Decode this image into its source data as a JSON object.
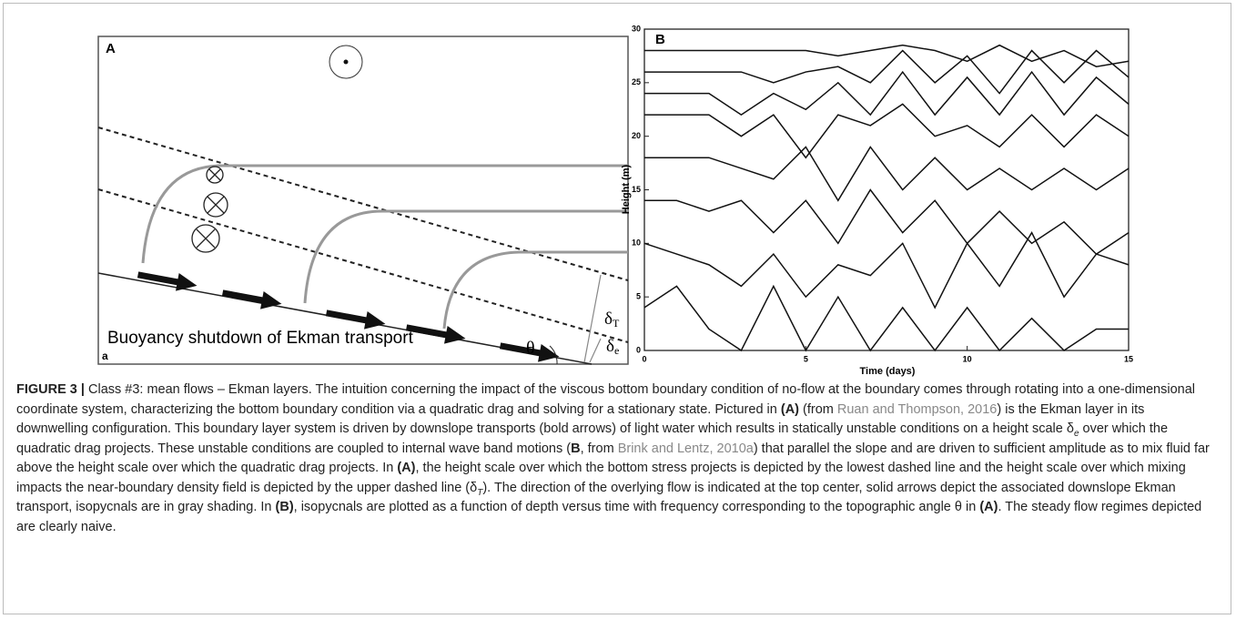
{
  "panel_a": {
    "label": "A",
    "corner": "a",
    "title": "Buoyancy shutdown of Ekman transport",
    "theta": "θ",
    "delta_t": {
      "symbol": "δ",
      "sub": "T"
    },
    "delta_e": {
      "symbol": "δ",
      "sub": "e"
    }
  },
  "chart_data": {
    "type": "line",
    "label": "B",
    "xlabel": "Time (days)",
    "ylabel": "Height (m)",
    "xlim": [
      0,
      15
    ],
    "ylim": [
      0,
      30
    ],
    "xticks": [
      0,
      5,
      10,
      15
    ],
    "yticks": [
      0,
      5,
      10,
      15,
      20,
      25,
      30
    ],
    "grid": false,
    "x": [
      0,
      1,
      2,
      3,
      4,
      5,
      6,
      7,
      8,
      9,
      10,
      11,
      12,
      13,
      14,
      15
    ],
    "series": [
      {
        "color": "#111",
        "values": [
          28,
          28,
          28,
          28,
          28,
          28,
          27.5,
          28,
          28.5,
          28,
          27,
          28.5,
          27,
          28,
          26.5,
          27
        ]
      },
      {
        "color": "#111",
        "values": [
          26,
          26,
          26,
          26,
          25,
          26,
          26.5,
          25,
          28,
          25,
          27.5,
          24,
          28,
          25,
          28,
          25.5
        ]
      },
      {
        "color": "#111",
        "values": [
          24,
          24,
          24,
          22,
          24,
          22.5,
          25,
          22,
          26,
          22,
          25.5,
          22,
          26,
          22,
          25.5,
          23
        ]
      },
      {
        "color": "#111",
        "values": [
          22,
          22,
          22,
          20,
          22,
          18,
          22,
          21,
          23,
          20,
          21,
          19,
          22,
          19,
          22,
          20
        ]
      },
      {
        "color": "#111",
        "values": [
          18,
          18,
          18,
          17,
          16,
          19,
          14,
          19,
          15,
          18,
          15,
          17,
          15,
          17,
          15,
          17
        ]
      },
      {
        "color": "#111",
        "values": [
          14,
          14,
          13,
          14,
          11,
          14,
          10,
          15,
          11,
          14,
          10,
          13,
          10,
          12,
          9,
          11
        ]
      },
      {
        "color": "#111",
        "values": [
          10,
          9,
          8,
          6,
          9,
          5,
          8,
          7,
          10,
          4,
          10,
          6,
          11,
          5,
          9,
          8
        ]
      },
      {
        "color": "#111",
        "values": [
          4,
          6,
          2,
          0,
          6,
          0,
          5,
          0,
          4,
          0,
          4,
          0,
          3,
          0,
          2,
          2
        ]
      }
    ]
  },
  "caption": {
    "label": "FIGURE 3 |",
    "parts": [
      " Class #3: mean flows – Ekman layers. The intuition concerning the impact of the viscous bottom boundary condition of no-flow at the boundary comes through rotating into a one-dimensional coordinate system, characterizing the bottom boundary condition via a quadratic drag and solving for a stationary state. Pictured in ",
      "(A)",
      " (from ",
      "Ruan and Thompson, 2016",
      ") is the Ekman layer in its downwelling configuration. This boundary layer system is driven by downslope transports (bold arrows) of light water which results in statically unstable conditions on a height scale δ",
      "e",
      " over which the quadratic drag projects. These unstable conditions are coupled to internal wave band motions (",
      "B",
      ", from ",
      "Brink and Lentz, 2010a",
      ") that parallel the slope and are driven to sufficient amplitude as to mix fluid far above the height scale over which the quadratic drag projects. In ",
      "(A)",
      ", the height scale over which the bottom stress projects is depicted by the lowest dashed line and the height scale over which mixing impacts the near-boundary density field is depicted by the upper dashed line (δ",
      "T",
      "). The direction of the overlying flow is indicated at the top center, solid arrows depict the associated downslope Ekman transport, isopycnals are in gray shading. In ",
      "(B)",
      ", isopycnals are plotted as a function of depth versus time with frequency corresponding to the topographic angle θ in ",
      "(A)",
      ". The steady flow regimes depicted are clearly naive."
    ]
  }
}
